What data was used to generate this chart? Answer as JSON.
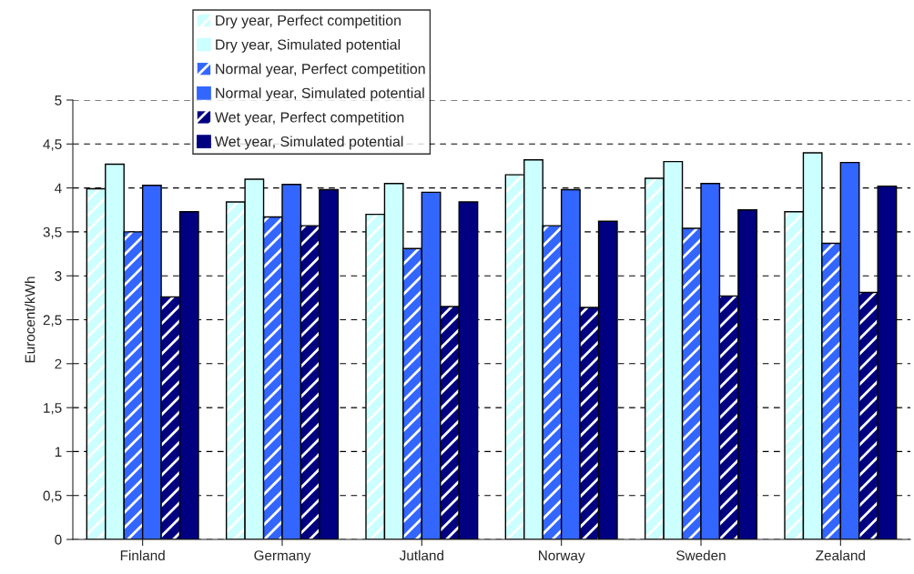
{
  "chart_data": {
    "type": "bar",
    "ylabel": "Eurocent/kWh",
    "categories": [
      "Finland",
      "Germany",
      "Jutland",
      "Norway",
      "Sweden",
      "Zealand"
    ],
    "series": [
      {
        "name": "Dry year, Perfect competition",
        "color": "#ccffff",
        "values": [
          3.99,
          3.84,
          3.7,
          4.15,
          4.11,
          3.73
        ]
      },
      {
        "name": "Dry year, Simulated potential",
        "color": "#ccffff",
        "values": [
          4.27,
          4.1,
          4.05,
          4.32,
          4.3,
          4.4
        ]
      },
      {
        "name": "Normal year, Perfect competition",
        "color": "#3366ff",
        "values": [
          3.5,
          3.67,
          3.31,
          3.57,
          3.54,
          3.37
        ]
      },
      {
        "name": "Normal year, Simulated potential",
        "color": "#3366ff",
        "values": [
          4.03,
          4.04,
          3.95,
          3.98,
          4.05,
          4.29
        ]
      },
      {
        "name": "Wet year, Perfect competition",
        "color": "#000080",
        "values": [
          2.76,
          3.57,
          2.65,
          2.64,
          2.77,
          2.81
        ]
      },
      {
        "name": "Wet year, Simulated potential",
        "color": "#000080",
        "values": [
          3.73,
          3.98,
          3.84,
          3.62,
          3.75,
          4.02
        ]
      }
    ],
    "ylim": [
      0,
      5
    ],
    "yticks": [
      0,
      {
        "value": 0.5,
        "label": "0,5"
      },
      1,
      {
        "value": 1.5,
        "label": "1,5"
      },
      2,
      {
        "value": 2.5,
        "label": "2,5"
      },
      3,
      {
        "value": 3.5,
        "label": "3,5"
      },
      4,
      {
        "value": 4.5,
        "label": "4,5"
      },
      5
    ],
    "grid": "y",
    "legend": "top"
  }
}
